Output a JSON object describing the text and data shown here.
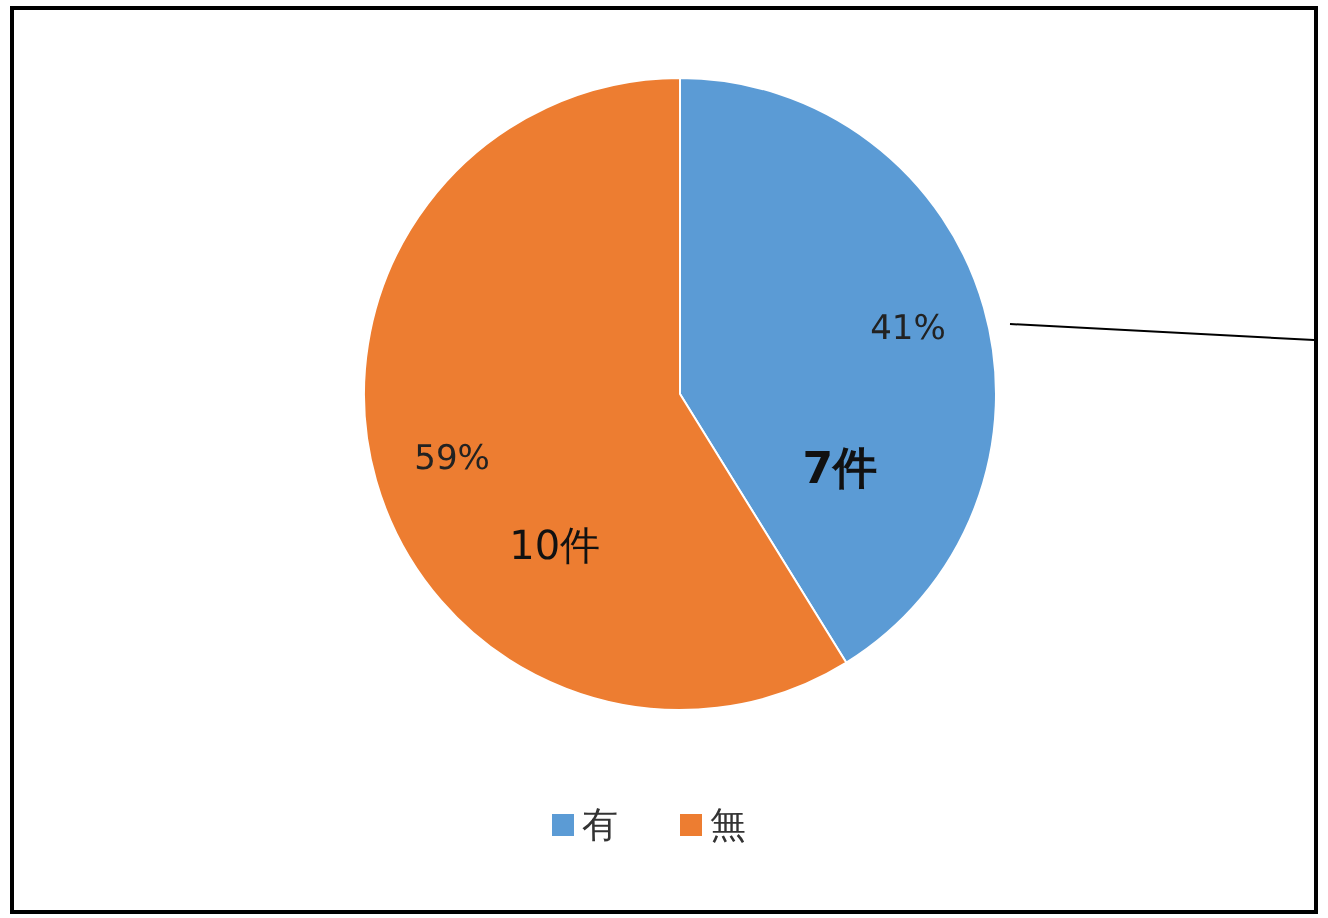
{
  "chart_data": {
    "type": "pie",
    "categories": [
      "有",
      "無"
    ],
    "values": [
      7,
      10
    ],
    "colors": [
      "#5b9bd5",
      "#ed7d31"
    ],
    "value_labels": [
      "7件",
      "10件"
    ],
    "annotations": [
      {
        "text": "41%",
        "x": "有"
      },
      {
        "text": "59%",
        "x": "無"
      }
    ],
    "legend": "bottom"
  }
}
